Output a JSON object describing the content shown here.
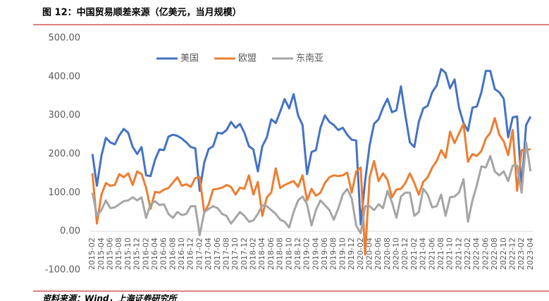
{
  "title": "图 12：中国贸易顺差来源（亿美元，当月规模）",
  "source": "资料来源：Wind，上海证券研究所",
  "chart_data": {
    "type": "line",
    "categories": [
      "2015-02",
      null,
      "2015-04",
      null,
      "2015-06",
      null,
      "2015-08",
      null,
      "2015-10",
      null,
      "2015-12",
      null,
      "2016-02",
      null,
      "2016-04",
      null,
      "2016-06",
      null,
      "2016-08",
      null,
      "2016-10",
      null,
      "2016-12",
      null,
      "2017-02",
      null,
      "2017-04",
      null,
      "2017-06",
      null,
      "2017-08",
      null,
      "2017-10",
      null,
      "2017-12",
      null,
      "2018-02",
      null,
      "2018-04",
      null,
      "2018-06",
      null,
      "2018-08",
      null,
      "2018-10",
      null,
      "2018-12",
      null,
      "2019-02",
      null,
      "2019-04",
      null,
      "2019-06",
      null,
      "2019-08",
      null,
      "2019-10",
      null,
      "2019-12",
      null,
      "2020-02",
      null,
      "2020-04",
      null,
      "2020-06",
      null,
      "2020-08",
      null,
      "2020-10",
      null,
      "2020-12",
      null,
      "2021-02",
      null,
      "2021-04",
      null,
      "2021-06",
      null,
      "2021-08",
      null,
      "2021-10",
      null,
      "2021-12",
      null,
      "2022-02",
      null,
      "2022-04",
      null,
      "2022-06",
      null,
      "2022-08",
      null,
      "2022-10",
      null,
      "2022-12",
      null,
      "2023-02",
      null,
      "2023-04"
    ],
    "series": [
      {
        "name": "美国",
        "color": "#4472c4",
        "values": [
          200,
          118,
          195,
          242,
          230,
          225,
          248,
          265,
          255,
          218,
          200,
          218,
          145,
          143,
          185,
          212,
          210,
          245,
          250,
          247,
          240,
          230,
          218,
          215,
          105,
          178,
          213,
          220,
          255,
          253,
          262,
          283,
          268,
          278,
          255,
          220,
          212,
          155,
          220,
          243,
          290,
          280,
          310,
          342,
          318,
          355,
          300,
          275,
          148,
          205,
          210,
          268,
          300,
          283,
          275,
          262,
          268,
          250,
          237,
          235,
          18,
          130,
          223,
          278,
          290,
          320,
          343,
          308,
          313,
          375,
          300,
          230,
          218,
          283,
          318,
          325,
          360,
          377,
          420,
          410,
          370,
          393,
          320,
          280,
          260,
          320,
          323,
          360,
          415,
          415,
          368,
          360,
          343,
          243,
          295,
          297,
          110,
          275,
          297
        ]
      },
      {
        "name": "欧盟",
        "color": "#ed7d31",
        "values": [
          150,
          20,
          95,
          125,
          118,
          120,
          148,
          140,
          150,
          120,
          155,
          148,
          113,
          58,
          102,
          100,
          108,
          112,
          126,
          140,
          118,
          122,
          115,
          138,
          140,
          48,
          70,
          108,
          110,
          113,
          120,
          115,
          95,
          113,
          110,
          145,
          95,
          128,
          40,
          88,
          100,
          163,
          112,
          120,
          125,
          130,
          115,
          145,
          80,
          110,
          92,
          100,
          125,
          140,
          145,
          143,
          145,
          152,
          100,
          155,
          165,
          -60,
          140,
          182,
          130,
          150,
          133,
          88,
          108,
          110,
          125,
          150,
          125,
          95,
          128,
          140,
          165,
          182,
          210,
          190,
          258,
          228,
          253,
          278,
          180,
          200,
          195,
          208,
          240,
          255,
          293,
          250,
          233,
          197,
          262,
          105,
          210,
          210,
          213
        ]
      },
      {
        "name": "东南亚",
        "color": "#a5a5a5",
        "values": [
          100,
          40,
          55,
          80,
          60,
          62,
          70,
          78,
          80,
          88,
          80,
          88,
          35,
          70,
          78,
          68,
          70,
          45,
          35,
          50,
          42,
          45,
          65,
          65,
          -10,
          50,
          58,
          65,
          60,
          45,
          40,
          20,
          35,
          50,
          40,
          25,
          28,
          45,
          68,
          65,
          55,
          45,
          30,
          25,
          10,
          50,
          80,
          90,
          70,
          15,
          55,
          80,
          68,
          55,
          30,
          60,
          95,
          110,
          85,
          15,
          -5,
          65,
          65,
          55,
          70,
          60,
          105,
          75,
          35,
          90,
          100,
          100,
          40,
          50,
          110,
          95,
          62,
          65,
          95,
          40,
          88,
          90,
          100,
          135,
          25,
          80,
          120,
          168,
          165,
          195,
          155,
          145,
          155,
          130,
          170,
          170,
          100,
          230,
          155
        ]
      }
    ],
    "ylim": [
      -100,
      500
    ],
    "yticks": [
      {
        "value": -100,
        "label": "-100.00"
      },
      {
        "value": 0,
        "label": "0.00"
      },
      {
        "value": 100,
        "label": "100.00"
      },
      {
        "value": 200,
        "label": "200.00"
      },
      {
        "value": 300,
        "label": "300.00"
      },
      {
        "value": 400,
        "label": "400.00"
      },
      {
        "value": 500,
        "label": "500.00"
      }
    ],
    "legend": "top"
  }
}
